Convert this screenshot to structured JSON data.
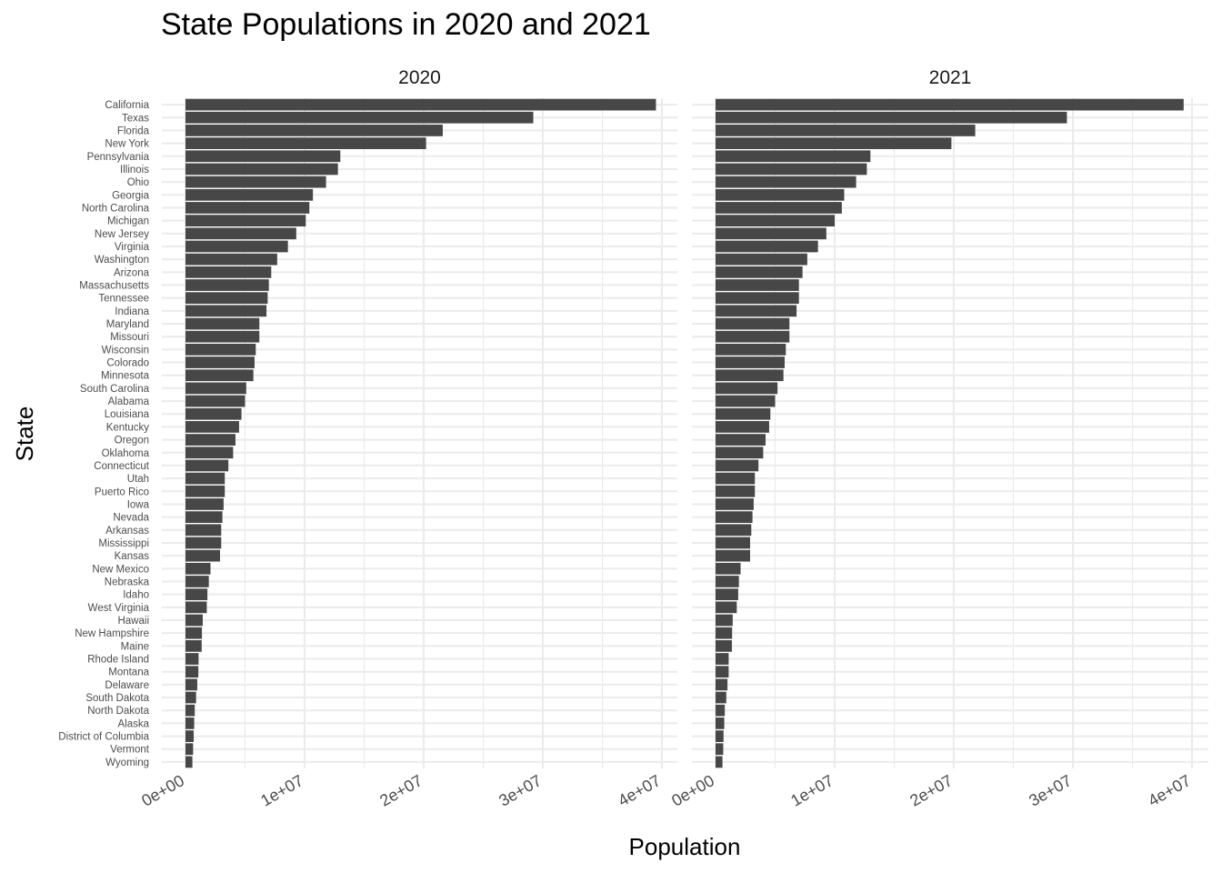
{
  "chart_data": {
    "type": "bar",
    "orientation": "horizontal",
    "title": "State Populations in 2020 and 2021",
    "xlabel": "Population",
    "ylabel": "State",
    "xlim": [
      0,
      41500000
    ],
    "x_ticks": [
      0,
      10000000,
      20000000,
      30000000,
      40000000
    ],
    "x_tick_labels": [
      "0e+00",
      "1e+07",
      "2e+07",
      "3e+07",
      "4e+07"
    ],
    "grid": true,
    "bar_color": "#474747",
    "grid_color": "#ebebeb",
    "categories": [
      "California",
      "Texas",
      "Florida",
      "New York",
      "Pennsylvania",
      "Illinois",
      "Ohio",
      "Georgia",
      "North Carolina",
      "Michigan",
      "New Jersey",
      "Virginia",
      "Washington",
      "Arizona",
      "Massachusetts",
      "Tennessee",
      "Indiana",
      "Maryland",
      "Missouri",
      "Wisconsin",
      "Colorado",
      "Minnesota",
      "South Carolina",
      "Alabama",
      "Louisiana",
      "Kentucky",
      "Oregon",
      "Oklahoma",
      "Connecticut",
      "Utah",
      "Puerto Rico",
      "Iowa",
      "Nevada",
      "Arkansas",
      "Mississippi",
      "Kansas",
      "New Mexico",
      "Nebraska",
      "Idaho",
      "West Virginia",
      "Hawaii",
      "New Hampshire",
      "Maine",
      "Rhode Island",
      "Montana",
      "Delaware",
      "South Dakota",
      "North Dakota",
      "Alaska",
      "District of Columbia",
      "Vermont",
      "Wyoming"
    ],
    "series": [
      {
        "name": "2020",
        "values": [
          39500000,
          29200000,
          21600000,
          20200000,
          13000000,
          12800000,
          11800000,
          10700000,
          10400000,
          10100000,
          9300000,
          8600000,
          7700000,
          7200000,
          7000000,
          6900000,
          6800000,
          6200000,
          6200000,
          5900000,
          5800000,
          5700000,
          5100000,
          5000000,
          4700000,
          4500000,
          4200000,
          4000000,
          3600000,
          3300000,
          3300000,
          3200000,
          3100000,
          3000000,
          3000000,
          2900000,
          2100000,
          1960000,
          1840000,
          1790000,
          1450000,
          1380000,
          1360000,
          1100000,
          1080000,
          990000,
          890000,
          780000,
          730000,
          690000,
          640000,
          580000
        ]
      },
      {
        "name": "2021",
        "values": [
          39300000,
          29500000,
          21800000,
          19800000,
          13000000,
          12700000,
          11800000,
          10800000,
          10600000,
          10000000,
          9300000,
          8600000,
          7700000,
          7300000,
          7000000,
          7000000,
          6800000,
          6200000,
          6200000,
          5900000,
          5800000,
          5700000,
          5200000,
          5000000,
          4600000,
          4500000,
          4200000,
          4000000,
          3600000,
          3300000,
          3300000,
          3200000,
          3100000,
          3000000,
          2900000,
          2900000,
          2100000,
          1960000,
          1900000,
          1780000,
          1440000,
          1390000,
          1370000,
          1100000,
          1100000,
          1000000,
          900000,
          775000,
          730000,
          670000,
          645000,
          580000
        ]
      }
    ]
  }
}
